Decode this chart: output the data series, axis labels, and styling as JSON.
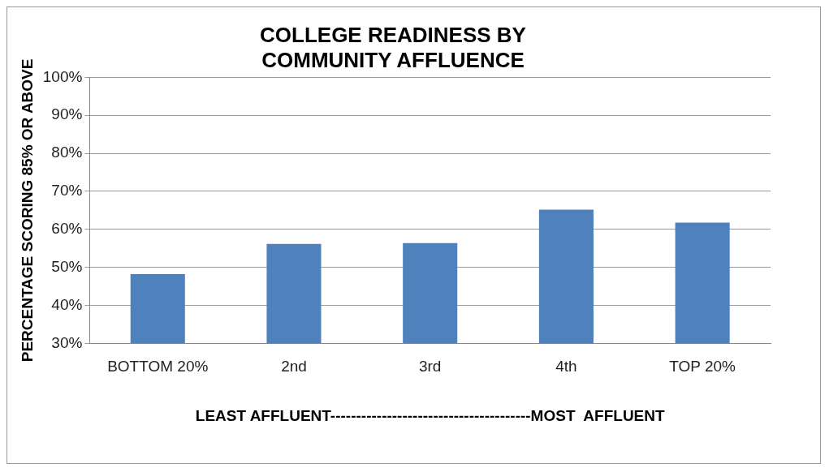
{
  "chart_data": {
    "type": "bar",
    "title": "COLLEGE READINESS BY COMMUNITY AFFLUENCE",
    "xlabel": "LEAST AFFLUENT---------------------------------------MOST  AFFLUENT",
    "ylabel": "PERCENTAGE SCORING 85% OR ABOVE",
    "categories": [
      "BOTTOM 20%",
      "2nd",
      "3rd",
      "4th",
      "TOP 20%"
    ],
    "values": [
      48.2,
      56.2,
      56.4,
      65.2,
      61.8
    ],
    "color": "#4f81bd",
    "ylim": [
      30,
      100
    ],
    "yticks": [
      {
        "value": 30,
        "label": "30%"
      },
      {
        "value": 40,
        "label": "40%"
      },
      {
        "value": 50,
        "label": "50%"
      },
      {
        "value": 60,
        "label": "60%"
      },
      {
        "value": 70,
        "label": "70%"
      },
      {
        "value": 80,
        "label": "80%"
      },
      {
        "value": 90,
        "label": "90%"
      },
      {
        "value": 100,
        "label": "100%"
      }
    ],
    "grid": "y",
    "legend": false
  }
}
